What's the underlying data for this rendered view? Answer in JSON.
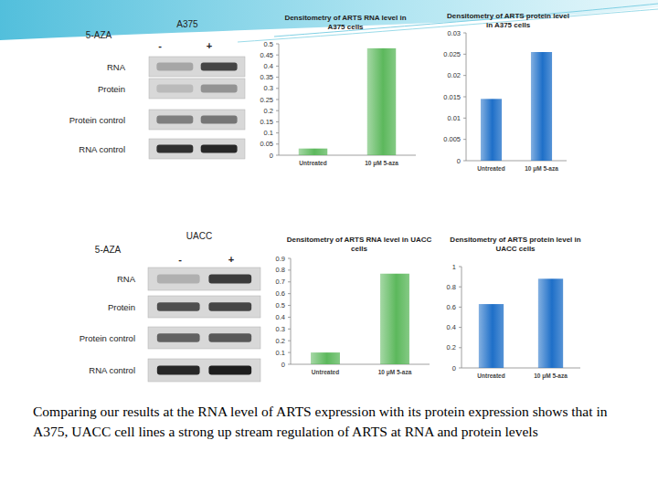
{
  "blots": [
    {
      "cell_line": "A375",
      "treatment_label": "5-AZA",
      "lanes": [
        "-",
        "+"
      ],
      "rows": [
        "RNA",
        "Protein",
        "Protein control",
        "RNA control"
      ]
    },
    {
      "cell_line": "UACC",
      "treatment_label": "5-AZA",
      "lanes": [
        "-",
        "+"
      ],
      "rows": [
        "RNA",
        "Protein",
        "Protein control",
        "RNA control"
      ]
    }
  ],
  "chart_data": [
    {
      "type": "bar",
      "title": "Densitometry of ARTS RNA level in A375 cells",
      "categories": [
        "Untreated",
        "10 μM 5-aza"
      ],
      "values": [
        0.03,
        0.48
      ],
      "color": "#5cb85c",
      "ylim": [
        0,
        0.5
      ],
      "yticks": [
        0,
        0.05,
        0.1,
        0.15,
        0.2,
        0.25,
        0.3,
        0.35,
        0.4,
        0.45,
        0.5
      ],
      "grid": false
    },
    {
      "type": "bar",
      "title": "Densitometry of ARTS protein level in A375 cells",
      "categories": [
        "Untreated",
        "10 μM 5-aza"
      ],
      "values": [
        0.0145,
        0.0255
      ],
      "color": "#1e6fc8",
      "ylim": [
        0,
        0.03
      ],
      "yticks": [
        0,
        0.005,
        0.01,
        0.015,
        0.02,
        0.025,
        0.03
      ],
      "grid": false
    },
    {
      "type": "bar",
      "title": "Densitometry of ARTS RNA level in UACC cells",
      "categories": [
        "Untreated",
        "10 μM 5-aza"
      ],
      "values": [
        0.1,
        0.77
      ],
      "color": "#5cb85c",
      "ylim": [
        0,
        0.9
      ],
      "yticks": [
        0,
        0.1,
        0.2,
        0.3,
        0.4,
        0.5,
        0.6,
        0.7,
        0.8,
        0.9
      ],
      "grid": false
    },
    {
      "type": "bar",
      "title": "Densitometry of ARTS protein level in UACC cells",
      "categories": [
        "Untreated",
        "10 μM 5-aza"
      ],
      "values": [
        0.63,
        0.88
      ],
      "color": "#1e6fc8",
      "ylim": [
        0,
        1
      ],
      "yticks": [
        0,
        0.2,
        0.4,
        0.6,
        0.8,
        1
      ],
      "grid": false
    }
  ],
  "caption": "Comparing our results at the RNA level of ARTS expression with its protein expression shows that in A375, UACC cell lines a strong up stream regulation of ARTS at RNA and protein levels"
}
